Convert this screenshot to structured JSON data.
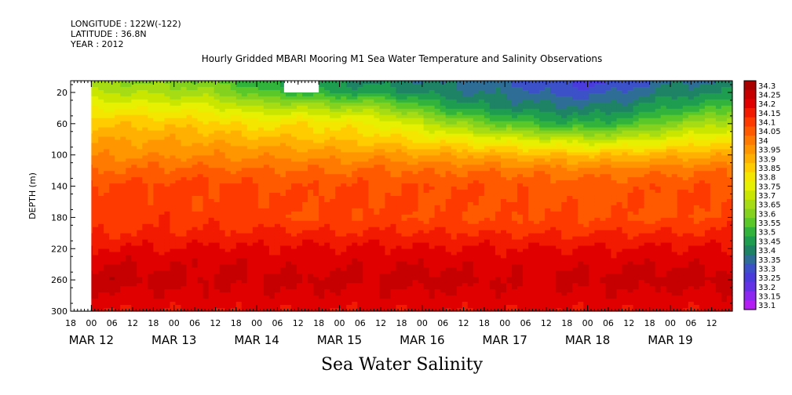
{
  "header": {
    "longitude": "LONGITUDE : 122W(-122)",
    "latitude": "LATITUDE : 36.8N",
    "year": "YEAR : 2012"
  },
  "chart_data": {
    "type": "heatmap",
    "title": "Hourly Gridded MBARI Mooring M1 Sea Water Temperature and Salinity Observations",
    "variable_title": "Sea Water Salinity",
    "ylabel": "DEPTH (m)",
    "y_ticks": [
      20,
      60,
      100,
      140,
      180,
      220,
      260,
      300
    ],
    "ylim": [
      300,
      5
    ],
    "x_hour_ticks": [
      "18",
      "00",
      "06",
      "12",
      "18",
      "00",
      "06",
      "12",
      "18",
      "00",
      "06",
      "12",
      "18",
      "00",
      "06",
      "12",
      "18",
      "00",
      "06",
      "12",
      "18",
      "00",
      "06",
      "12",
      "18",
      "00",
      "06",
      "12",
      "18",
      "00",
      "06",
      "12"
    ],
    "x_day_labels": [
      "MAR 12",
      "MAR 13",
      "MAR 14",
      "MAR 15",
      "MAR 16",
      "MAR 17",
      "MAR 18",
      "MAR 19"
    ],
    "colorbar": {
      "levels": [
        "34.3",
        "34.25",
        "34.2",
        "34.15",
        "34.1",
        "34.05",
        "34",
        "33.95",
        "33.9",
        "33.85",
        "33.8",
        "33.75",
        "33.7",
        "33.65",
        "33.6",
        "33.55",
        "33.5",
        "33.45",
        "33.4",
        "33.35",
        "33.3",
        "33.25",
        "33.2",
        "33.15",
        "33.1"
      ],
      "colors": [
        "#a80000",
        "#c60000",
        "#e00000",
        "#f21a00",
        "#ff3a00",
        "#ff5a00",
        "#ff7a00",
        "#ff9600",
        "#ffb000",
        "#ffcc00",
        "#f5e600",
        "#e6f000",
        "#c8e600",
        "#a6dc14",
        "#84d21e",
        "#5ac828",
        "#32b43c",
        "#1e9c50",
        "#1e8264",
        "#2e6e96",
        "#3c50c8",
        "#4a3cdc",
        "#6432e6",
        "#8c28f0",
        "#b41ef5"
      ]
    },
    "profile_depths": [
      5,
      20,
      40,
      60,
      80,
      100,
      120,
      140,
      160,
      180,
      200,
      220,
      240,
      260,
      280,
      300
    ],
    "profiles": [
      {
        "day": 0.0,
        "values": [
          33.62,
          33.68,
          33.78,
          33.87,
          33.92,
          33.97,
          34.03,
          34.08,
          34.1,
          34.09,
          34.12,
          34.18,
          34.22,
          34.26,
          34.21,
          34.18
        ]
      },
      {
        "day": 1.0,
        "values": [
          33.6,
          33.66,
          33.76,
          33.86,
          33.92,
          33.97,
          34.04,
          34.09,
          34.09,
          34.11,
          34.13,
          34.18,
          34.22,
          34.24,
          34.21,
          34.18
        ]
      },
      {
        "day": 1.5,
        "values": [
          33.57,
          33.63,
          33.74,
          33.84,
          33.91,
          33.97,
          34.04,
          34.09,
          34.08,
          34.1,
          34.14,
          34.19,
          34.22,
          34.23,
          34.21,
          34.18
        ]
      },
      {
        "day": 2.0,
        "values": [
          33.48,
          33.54,
          33.68,
          33.8,
          33.89,
          33.96,
          34.03,
          34.08,
          34.09,
          34.1,
          34.13,
          34.18,
          34.22,
          34.23,
          34.21,
          34.18
        ]
      },
      {
        "day": 2.5,
        "values": [
          33.43,
          33.5,
          33.68,
          33.82,
          33.88,
          33.96,
          34.03,
          34.07,
          34.08,
          34.07,
          34.14,
          34.19,
          34.21,
          34.24,
          34.21,
          34.18
        ]
      },
      {
        "day": 3.0,
        "values": [
          33.42,
          33.47,
          33.65,
          33.8,
          33.86,
          33.95,
          34.02,
          34.08,
          34.09,
          34.08,
          34.13,
          34.18,
          34.21,
          34.24,
          34.21,
          34.18
        ]
      },
      {
        "day": 3.5,
        "values": [
          33.4,
          33.46,
          33.64,
          33.77,
          33.85,
          33.95,
          34.03,
          34.08,
          34.08,
          34.09,
          34.13,
          34.19,
          34.22,
          34.23,
          34.21,
          34.18
        ]
      },
      {
        "day": 4.0,
        "values": [
          33.38,
          33.42,
          33.54,
          33.7,
          33.81,
          33.93,
          34.02,
          34.07,
          34.08,
          34.07,
          34.13,
          34.18,
          34.22,
          34.25,
          34.21,
          34.18
        ]
      },
      {
        "day": 4.5,
        "values": [
          33.35,
          33.38,
          33.46,
          33.62,
          33.77,
          33.92,
          34.02,
          34.07,
          34.08,
          34.07,
          34.13,
          34.18,
          34.21,
          34.24,
          34.21,
          34.18
        ]
      },
      {
        "day": 5.0,
        "values": [
          33.33,
          33.36,
          33.42,
          33.55,
          33.74,
          33.9,
          34.01,
          34.07,
          34.07,
          34.07,
          34.12,
          34.18,
          34.21,
          34.22,
          34.21,
          34.18
        ]
      },
      {
        "day": 5.5,
        "values": [
          33.28,
          33.32,
          33.4,
          33.5,
          33.7,
          33.88,
          34.0,
          34.06,
          34.07,
          34.08,
          34.12,
          34.18,
          34.21,
          34.23,
          34.21,
          34.18
        ]
      },
      {
        "day": 6.0,
        "values": [
          33.25,
          33.3,
          33.38,
          33.48,
          33.68,
          33.87,
          34.0,
          34.05,
          34.06,
          34.07,
          34.12,
          34.18,
          34.21,
          34.24,
          34.21,
          34.18
        ]
      },
      {
        "day": 6.5,
        "values": [
          33.3,
          33.34,
          33.42,
          33.52,
          33.7,
          33.88,
          34.0,
          34.06,
          34.07,
          34.07,
          34.13,
          34.18,
          34.22,
          34.24,
          34.21,
          34.18
        ]
      },
      {
        "day": 7.0,
        "values": [
          33.36,
          33.4,
          33.48,
          33.6,
          33.75,
          33.9,
          34.01,
          34.07,
          34.08,
          34.06,
          34.13,
          34.18,
          34.22,
          34.25,
          34.21,
          34.18
        ]
      },
      {
        "day": 7.7,
        "values": [
          33.38,
          33.42,
          33.54,
          33.68,
          33.8,
          33.92,
          34.02,
          34.07,
          34.08,
          34.09,
          34.13,
          34.18,
          34.22,
          34.25,
          34.21,
          34.18
        ]
      }
    ],
    "missing_data": [
      {
        "day_start": -0.25,
        "day_end": 0.0,
        "depth_start": 5,
        "depth_end": 300
      },
      {
        "day_start": 2.33,
        "day_end": 2.75,
        "depth_start": 5,
        "depth_end": 20
      }
    ]
  }
}
